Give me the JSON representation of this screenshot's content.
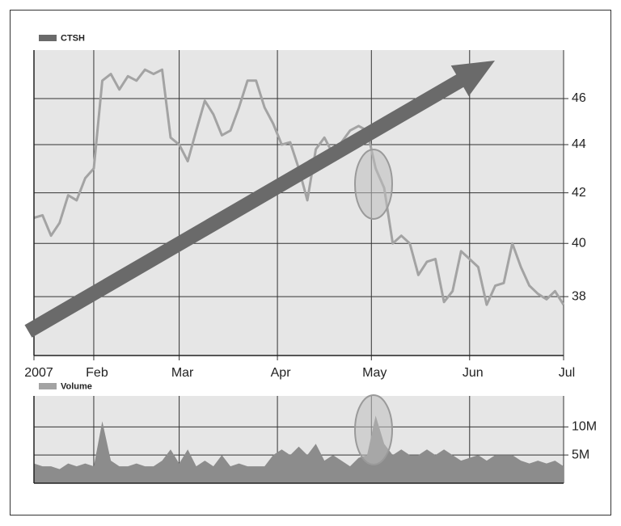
{
  "chart_data": [
    {
      "type": "line",
      "yscale": "log",
      "grid": true,
      "legend": "top-left",
      "x": [
        0,
        2,
        4,
        6,
        8,
        10,
        12,
        14,
        16,
        18,
        20,
        22,
        24,
        26,
        28,
        30,
        32,
        34,
        36,
        38,
        40,
        42,
        44,
        46,
        48,
        50,
        52,
        54,
        56,
        58,
        60,
        62,
        64,
        66,
        68,
        70,
        72,
        74,
        76,
        78,
        80,
        82,
        84,
        86,
        88,
        90,
        92,
        94,
        96,
        98,
        100,
        102,
        104,
        106,
        108,
        110,
        112,
        114,
        116,
        118,
        120,
        122,
        124
      ],
      "xlim": [
        0,
        124
      ],
      "xticks": [
        {
          "value": 0,
          "label": "2007"
        },
        {
          "value": 14,
          "label": "Feb"
        },
        {
          "value": 34,
          "label": "Mar"
        },
        {
          "value": 57,
          "label": "Apr"
        },
        {
          "value": 79,
          "label": "May"
        },
        {
          "value": 102,
          "label": "Jun"
        },
        {
          "value": 124,
          "label": "Jul"
        }
      ],
      "ylim": [
        35.9,
        48.2
      ],
      "yticks": [
        38,
        40,
        42,
        44,
        46
      ],
      "series": [
        {
          "name": "CTSH",
          "color": "#a3a3a3",
          "values": [
            41,
            41.1,
            40.3,
            40.8,
            41.9,
            41.7,
            42.6,
            43,
            46.8,
            47.1,
            46.4,
            47,
            46.8,
            47.3,
            47.1,
            47.3,
            44.3,
            44,
            43.3,
            44.6,
            45.9,
            45.3,
            44.4,
            44.6,
            45.6,
            46.8,
            46.8,
            45.6,
            44.9,
            44,
            44.1,
            43,
            41.7,
            43.8,
            44.3,
            43.6,
            44.1,
            44.6,
            44.8,
            44.6,
            43,
            42.2,
            40,
            40.3,
            40,
            38.8,
            39.3,
            39.4,
            37.8,
            38.2,
            39.7,
            39.4,
            39.1,
            37.7,
            38.4,
            38.5,
            40,
            39.1,
            38.4,
            38.1,
            37.9,
            38.2,
            37.7
          ]
        }
      ]
    },
    {
      "type": "area",
      "grid": true,
      "legend": "top-left",
      "x": [
        0,
        2,
        4,
        6,
        8,
        10,
        12,
        14,
        16,
        18,
        20,
        22,
        24,
        26,
        28,
        30,
        32,
        34,
        36,
        38,
        40,
        42,
        44,
        46,
        48,
        50,
        52,
        54,
        56,
        58,
        60,
        62,
        64,
        66,
        68,
        70,
        72,
        74,
        76,
        78,
        80,
        82,
        84,
        86,
        88,
        90,
        92,
        94,
        96,
        98,
        100,
        102,
        104,
        106,
        108,
        110,
        112,
        114,
        116,
        118,
        120,
        122,
        124
      ],
      "xlim": [
        0,
        124
      ],
      "ylim": [
        0,
        15500000
      ],
      "yticks": [
        {
          "value": 5000000,
          "label": "5M"
        },
        {
          "value": 10000000,
          "label": "10M"
        }
      ],
      "series": [
        {
          "name": "Volume",
          "color": "#8c8c8c",
          "values": [
            3500000,
            3000000,
            3000000,
            2500000,
            3500000,
            3000000,
            3500000,
            3000000,
            11000000,
            4000000,
            3000000,
            3000000,
            3500000,
            3000000,
            3000000,
            4000000,
            6000000,
            3500000,
            6000000,
            3000000,
            4000000,
            3000000,
            5000000,
            3000000,
            3500000,
            3000000,
            3000000,
            3000000,
            5000000,
            6000000,
            5000000,
            6500000,
            5000000,
            7000000,
            4000000,
            5000000,
            4000000,
            3000000,
            4500000,
            5000000,
            12000000,
            7000000,
            5000000,
            6000000,
            5000000,
            5000000,
            6000000,
            5000000,
            6000000,
            5000000,
            4000000,
            4500000,
            5000000,
            4000000,
            5000000,
            5000000,
            5000000,
            4000000,
            3500000,
            4000000,
            3500000,
            4000000,
            3000000
          ]
        }
      ]
    }
  ]
}
